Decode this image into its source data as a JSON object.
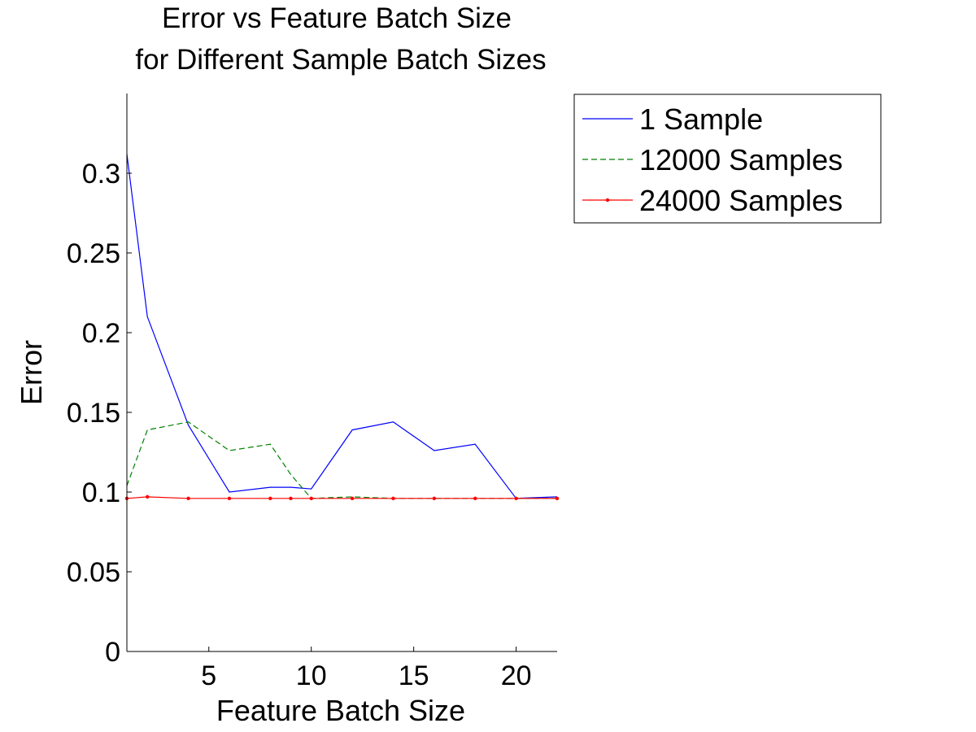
{
  "chart_data": {
    "type": "line",
    "title": "Error vs Feature Batch Size",
    "subtitle": "for Different Sample Batch Sizes",
    "xlabel": "Feature Batch Size",
    "ylabel": "Error",
    "xlim": [
      1,
      22
    ],
    "ylim": [
      0,
      0.35
    ],
    "xticks": [
      5,
      10,
      15,
      20
    ],
    "yticks": [
      0,
      0.05,
      0.1,
      0.15,
      0.2,
      0.25,
      0.3
    ],
    "ytick_labels": [
      "0",
      "0.05",
      "0.1",
      "0.15",
      "0.2",
      "0.25",
      "0.3"
    ],
    "grid": false,
    "legend_position": "outside-top-right",
    "x": [
      1,
      2,
      4,
      6,
      8,
      9,
      10,
      12,
      14,
      16,
      18,
      20,
      22
    ],
    "series": [
      {
        "name": "1 Sample",
        "color": "#0000ff",
        "style": "solid",
        "marker": "none",
        "values": [
          0.312,
          0.21,
          0.142,
          0.1,
          0.103,
          0.103,
          0.102,
          0.139,
          0.144,
          0.126,
          0.13,
          0.096,
          0.097
        ]
      },
      {
        "name": "12000 Samples",
        "color": "#008000",
        "style": "dashed",
        "marker": "none",
        "values": [
          0.104,
          0.139,
          0.144,
          0.126,
          0.13,
          0.111,
          0.096,
          0.097,
          0.096,
          0.096,
          0.096,
          0.096,
          0.096
        ]
      },
      {
        "name": "24000 Samples",
        "color": "#ff0000",
        "style": "solid",
        "marker": "dot",
        "values": [
          0.096,
          0.097,
          0.096,
          0.096,
          0.096,
          0.096,
          0.096,
          0.096,
          0.096,
          0.096,
          0.096,
          0.096,
          0.096
        ]
      }
    ]
  }
}
